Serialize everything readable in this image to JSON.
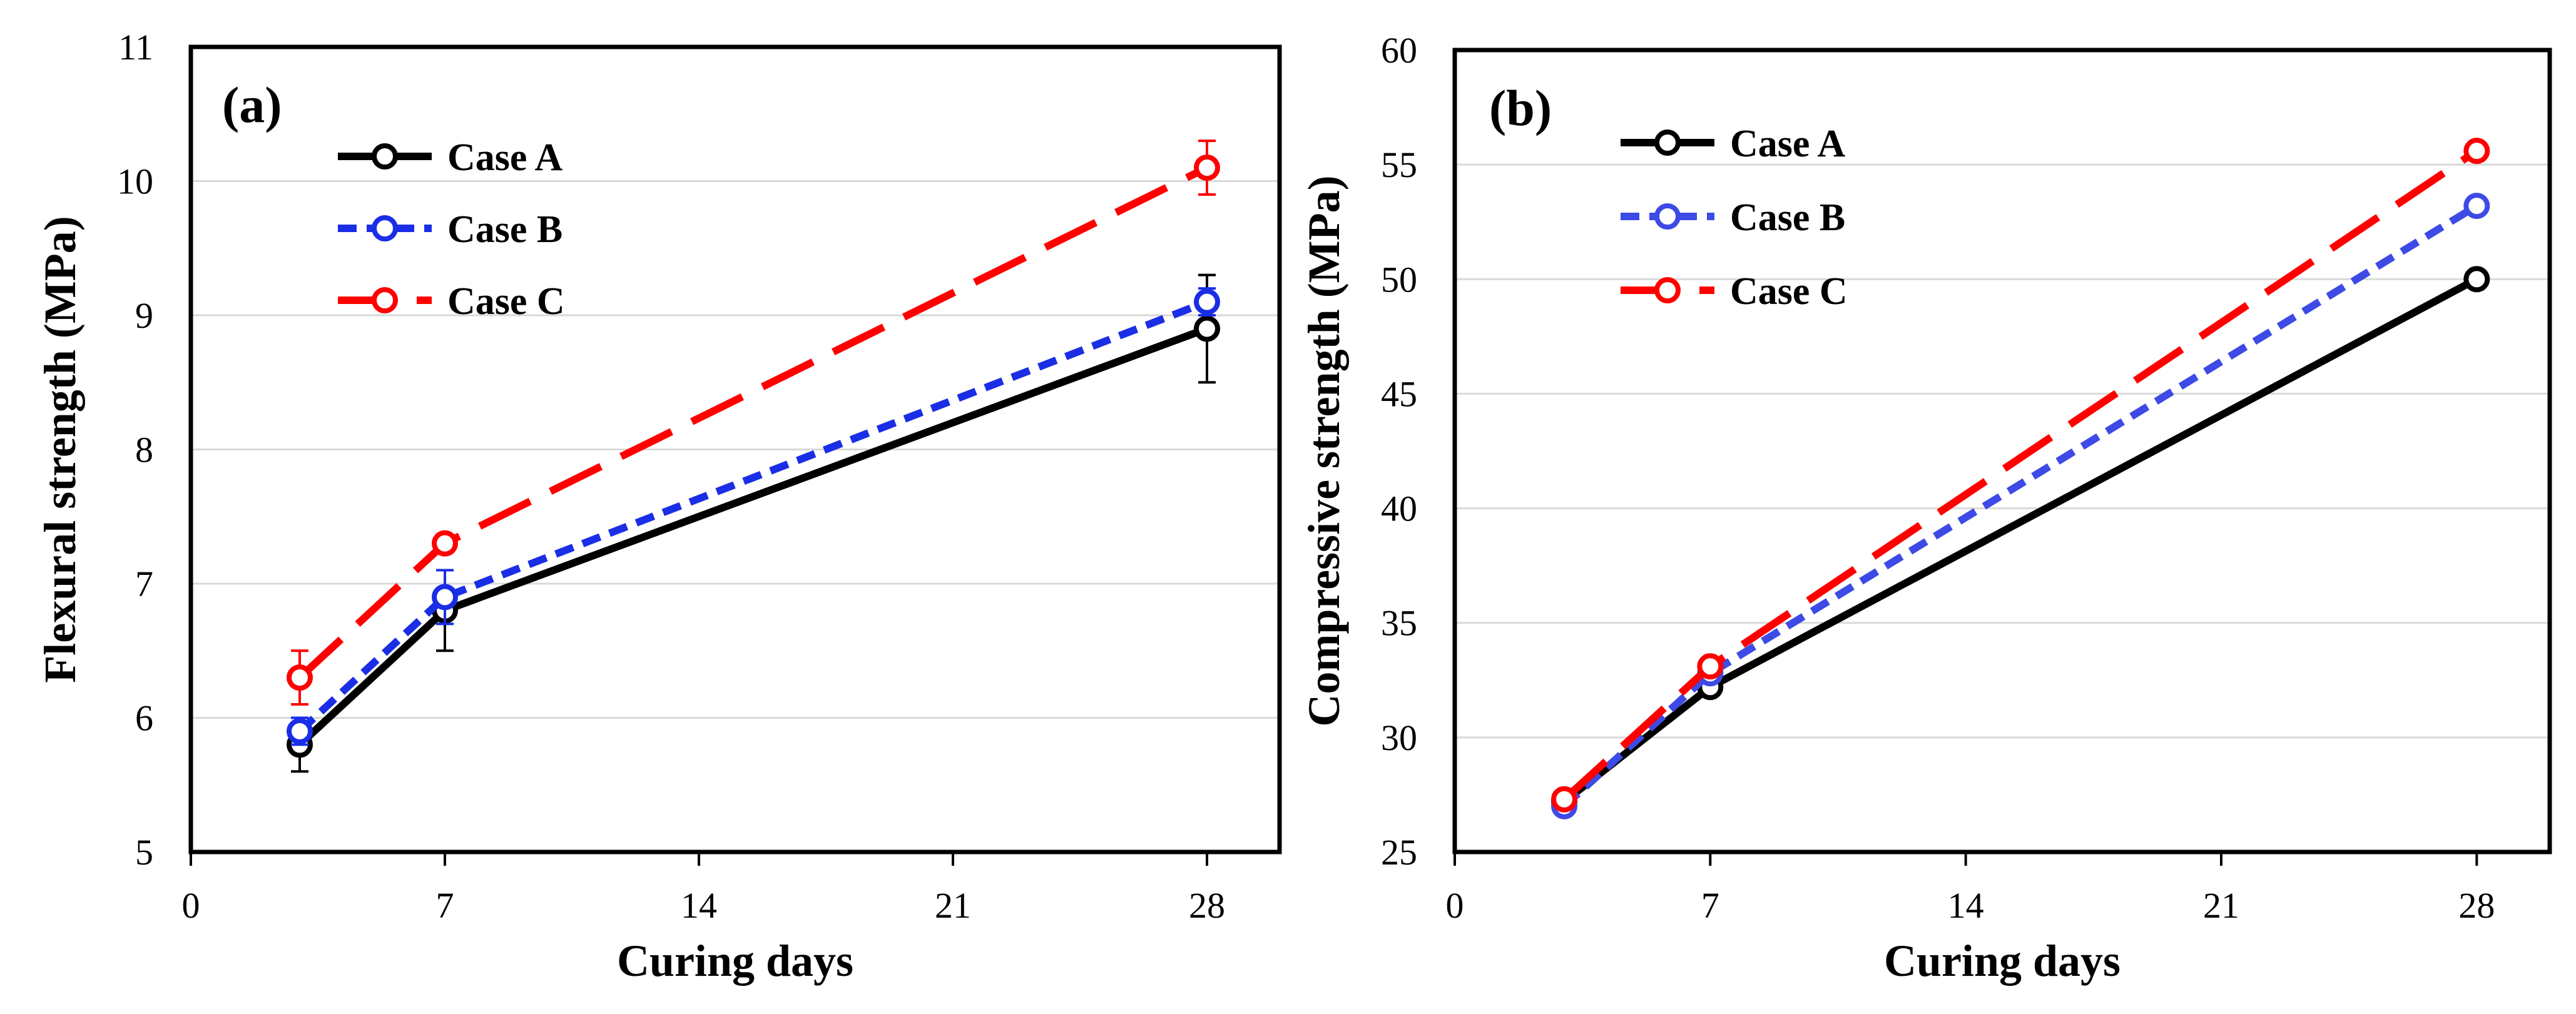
{
  "colors": {
    "case_a": "#000000",
    "case_b_a": "#1a2ee6",
    "case_b_b": "#3d4ae6",
    "case_c": "#ff0000",
    "grid": "#d9d9d9"
  },
  "chart_data": [
    {
      "type": "line",
      "panel_label": "(a)",
      "title": "",
      "xlabel": "Curing days",
      "ylabel": "Flexural strength (MPa)",
      "x": [
        3,
        7,
        28
      ],
      "xlim": [
        0,
        30
      ],
      "ylim": [
        5,
        11
      ],
      "xticks": [
        0,
        7,
        14,
        21,
        28
      ],
      "yticks": [
        5,
        6,
        7,
        8,
        9,
        10,
        11
      ],
      "grid": "horizontal",
      "legend_position": "top-left",
      "series": [
        {
          "name": "Case A",
          "values": [
            5.8,
            6.8,
            8.9
          ],
          "error": [
            0.2,
            0.3,
            0.4
          ],
          "color_key": "case_a",
          "style": "solid"
        },
        {
          "name": "Case B",
          "values": [
            5.9,
            6.9,
            9.1
          ],
          "error": [
            0.1,
            0.2,
            0.1
          ],
          "color_key": "case_b_a",
          "style": "dashed"
        },
        {
          "name": "Case C",
          "values": [
            6.3,
            7.3,
            10.1
          ],
          "error": [
            0.2,
            0.05,
            0.2
          ],
          "color_key": "case_c",
          "style": "long-dash"
        }
      ]
    },
    {
      "type": "line",
      "panel_label": "(b)",
      "title": "",
      "xlabel": "Curing days",
      "ylabel": "Compressive strength (MPa)",
      "x": [
        3,
        7,
        28
      ],
      "xlim": [
        0,
        30
      ],
      "ylim": [
        25,
        60
      ],
      "xticks": [
        0,
        7,
        14,
        21,
        28
      ],
      "yticks": [
        25,
        30,
        35,
        40,
        45,
        50,
        55,
        60
      ],
      "grid": "horizontal",
      "legend_position": "top-left",
      "series": [
        {
          "name": "Case A",
          "values": [
            27.2,
            32.2,
            50.0
          ],
          "error": [],
          "color_key": "case_a",
          "style": "solid"
        },
        {
          "name": "Case B",
          "values": [
            27.0,
            32.8,
            53.2
          ],
          "error": [],
          "color_key": "case_b_b",
          "style": "dashed"
        },
        {
          "name": "Case C",
          "values": [
            27.3,
            33.1,
            55.6
          ],
          "error": [],
          "color_key": "case_c",
          "style": "long-dash"
        }
      ]
    }
  ]
}
